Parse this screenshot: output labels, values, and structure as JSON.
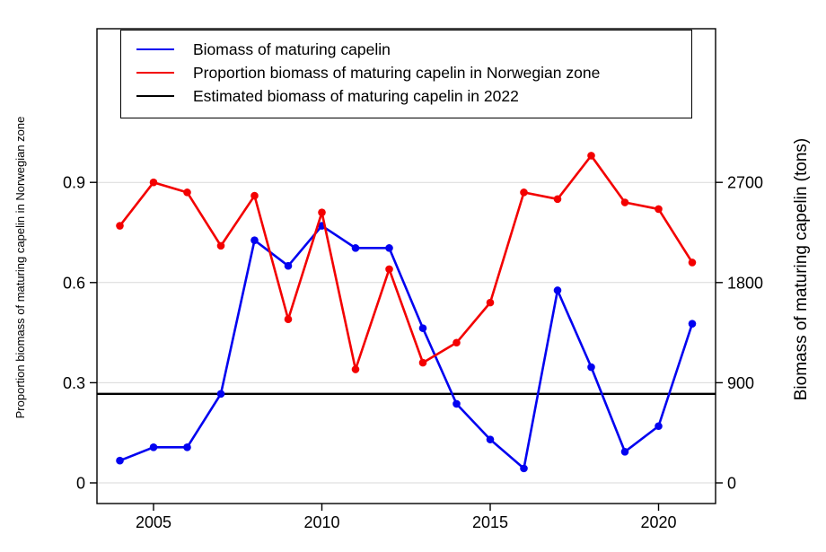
{
  "chart_data": {
    "type": "line",
    "title": "",
    "x": [
      2004,
      2005,
      2006,
      2007,
      2008,
      2009,
      2010,
      2011,
      2012,
      2013,
      2014,
      2015,
      2016,
      2017,
      2018,
      2019,
      2020,
      2021
    ],
    "x_axis": {
      "ticks": [
        2005,
        2010,
        2015,
        2020
      ],
      "range": [
        2003.2,
        2021.7
      ]
    },
    "left_axis": {
      "label": "Proportion biomass of maturing capelin in Norwegian zone",
      "ticks": [
        0,
        0.3,
        0.6,
        0.9
      ],
      "range": [
        0,
        1.08
      ],
      "grid": true
    },
    "right_axis": {
      "label": "Biomass of maturing capelin (tons)",
      "ticks": [
        0,
        900,
        1800,
        2700
      ],
      "range": [
        0,
        3240
      ]
    },
    "series": [
      {
        "name": "Biomass of maturing capelin",
        "color": "#0202f0",
        "axis": "right",
        "marker": "circle",
        "values": [
          200,
          320,
          320,
          800,
          2180,
          1950,
          2310,
          2110,
          2110,
          1390,
          710,
          390,
          130,
          1730,
          1040,
          280,
          510,
          1430
        ]
      },
      {
        "name": "Proportion biomass of maturing capelin in Norwegian zone",
        "color": "#f30000",
        "axis": "left",
        "marker": "circle",
        "values": [
          0.77,
          0.9,
          0.87,
          0.71,
          0.86,
          0.49,
          0.81,
          0.34,
          0.64,
          0.36,
          0.42,
          0.54,
          0.87,
          0.85,
          0.98,
          0.84,
          0.82,
          0.66
        ]
      }
    ],
    "reference_line": {
      "name": "Estimated biomass of maturing capelin in 2022",
      "color": "#000000",
      "value_tons": 800
    },
    "legend": {
      "position": "top-left",
      "items": [
        {
          "label": "Biomass of maturing capelin",
          "color": "#0202f0"
        },
        {
          "label": "Proportion biomass of maturing capelin in Norwegian zone",
          "color": "#f30000"
        },
        {
          "label": "Estimated biomass of maturing capelin in 2022",
          "color": "#000000"
        }
      ]
    },
    "grid_color": "#d9d9d9"
  }
}
